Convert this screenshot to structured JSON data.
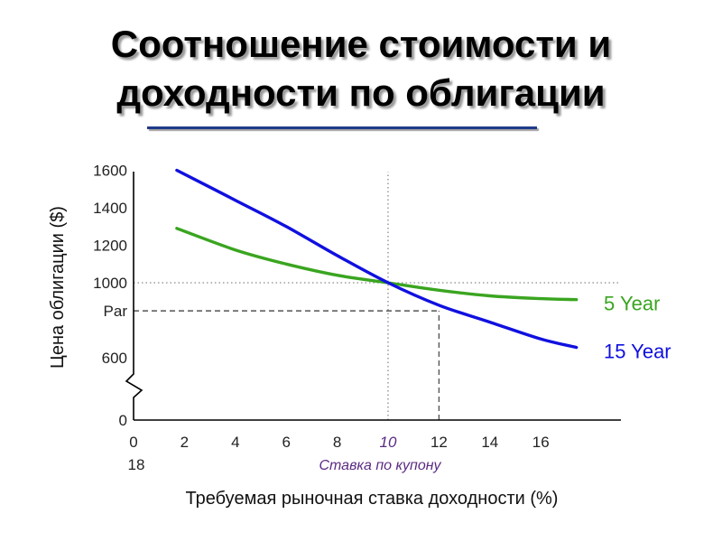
{
  "title": {
    "line1": "Соотношение стоимости и",
    "line2": "доходности по облигации"
  },
  "colors": {
    "accent_rule": "#1f3a8a",
    "highlight_text": "#5a2a82"
  },
  "chart_data": {
    "type": "line",
    "xlabel": "Требуемая рыночная ставка доходности (%)",
    "ylabel": "Цена облигации ($)",
    "x_ticks": [
      "0",
      "2",
      "4",
      "6",
      "8",
      "10",
      "12",
      "14",
      "16"
    ],
    "x_tick_extra": "18",
    "highlight_x": 10,
    "coupon_label": "Ставка по купону",
    "y_ticks": [
      {
        "label": "0",
        "value": 0
      },
      {
        "label": "600",
        "value": 600
      },
      {
        "label": "Par",
        "value": 850
      },
      {
        "label": "1000",
        "value": 1000
      },
      {
        "label": "1200",
        "value": 1200
      },
      {
        "label": "1400",
        "value": 1400
      },
      {
        "label": "1600",
        "value": 1600
      }
    ],
    "y_axis_break": true,
    "reference_lines": [
      {
        "axis": "x",
        "value": 10,
        "style": "dotted"
      },
      {
        "axis": "y",
        "value": 1000,
        "style": "dotted"
      },
      {
        "axis": "x",
        "value": 12,
        "style": "dashed"
      },
      {
        "axis": "y",
        "value": 850,
        "style": "dashed"
      }
    ],
    "xlim": [
      0,
      19
    ],
    "grid": false,
    "series": [
      {
        "name": "5 Year",
        "color": "#3aa520",
        "x": [
          1.7,
          4,
          6,
          8,
          10,
          12,
          14,
          16,
          17.4
        ],
        "y": [
          1290,
          1175,
          1100,
          1040,
          1000,
          960,
          930,
          915,
          910
        ]
      },
      {
        "name": "15 Year",
        "color": "#1010e0",
        "x": [
          1.7,
          4,
          6,
          8,
          10,
          12,
          14,
          16,
          17.4
        ],
        "y": [
          1600,
          1440,
          1300,
          1145,
          1000,
          880,
          790,
          700,
          655
        ]
      }
    ]
  }
}
